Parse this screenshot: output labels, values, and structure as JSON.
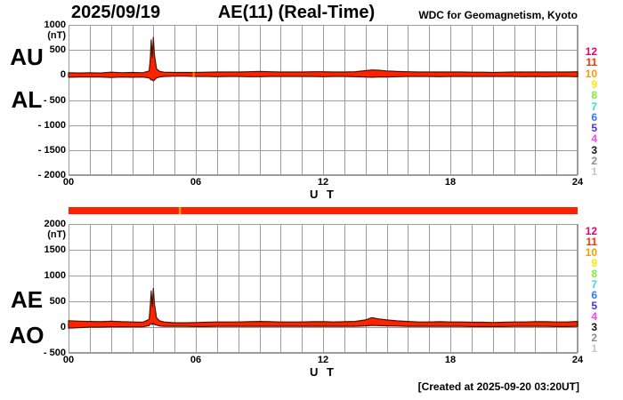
{
  "header": {
    "date": "2025/09/19",
    "title": "AE(11) (Real-Time)",
    "source": "WDC for Geomagnetism, Kyoto"
  },
  "footer": {
    "created": "[Created at 2025-09-20 03:20UT]"
  },
  "colors": {
    "trace": "#ff2200",
    "trace_edge": "#4a1500",
    "grid": "#9c9c9c",
    "text": "#000000"
  },
  "legend": {
    "station_counts": [
      "12",
      "11",
      "10",
      "9",
      "8",
      "7",
      "6",
      "5",
      "4",
      "3",
      "2",
      "1"
    ],
    "colors": [
      "#e8006e",
      "#ff3300",
      "#ff9900",
      "#ffe800",
      "#80ee3c",
      "#30e0d0",
      "#3377ff",
      "#5530cc",
      "#ff40ff",
      "#151515",
      "#8c8c8c",
      "#c8c8c8"
    ]
  },
  "availability_bar": {
    "color": "#ff2200",
    "gap_hour": 5.25,
    "gap_color": "#ff9900"
  },
  "chart_data": [
    {
      "type": "area",
      "left_labels": [
        "AU",
        "AL"
      ],
      "ylabel": "(nT)",
      "xlabel": "U T",
      "ylim": [
        -2000,
        1000
      ],
      "yticks": [
        1000,
        500,
        0,
        -500,
        -1000,
        -1500,
        -2000
      ],
      "ytick_labels": [
        "1000",
        "500",
        "0",
        "- 500",
        "- 1000",
        "- 1500",
        "- 2000"
      ],
      "xlim": [
        0,
        24
      ],
      "xtick_hours": [
        0,
        6,
        12,
        18,
        24
      ],
      "xtick_labels": [
        "00",
        "06",
        "12",
        "18",
        "24"
      ],
      "grid": true,
      "band_gap": {
        "hour": 5.9,
        "top": 50,
        "bottom": -35,
        "color": "#ff9900"
      },
      "x": [
        0,
        0.5,
        1,
        1.5,
        2,
        2.5,
        3,
        3.5,
        3.8,
        3.85,
        3.9,
        3.95,
        4.0,
        4.05,
        4.15,
        4.3,
        4.5,
        5,
        5.5,
        6,
        6.5,
        7,
        7.5,
        8,
        8.5,
        9,
        9.5,
        10,
        10.5,
        11,
        11.5,
        12,
        12.5,
        13,
        13.5,
        14,
        14.3,
        14.6,
        15,
        15.5,
        16,
        16.5,
        17,
        17.5,
        18,
        18.5,
        19,
        19.5,
        20,
        20.5,
        21,
        21.5,
        22,
        22.5,
        23,
        23.5,
        24
      ],
      "series": [
        {
          "name": "AU",
          "values": [
            45,
            40,
            45,
            40,
            55,
            45,
            50,
            45,
            80,
            300,
            700,
            350,
            750,
            400,
            120,
            70,
            55,
            50,
            50,
            50,
            55,
            60,
            60,
            60,
            65,
            70,
            65,
            60,
            60,
            60,
            65,
            65,
            60,
            60,
            65,
            85,
            100,
            95,
            80,
            70,
            65,
            60,
            60,
            60,
            60,
            60,
            55,
            55,
            50,
            55,
            60,
            60,
            60,
            60,
            60,
            60,
            65
          ]
        },
        {
          "name": "AL",
          "values": [
            -45,
            -40,
            -40,
            -40,
            -50,
            -40,
            -45,
            -40,
            -60,
            -80,
            -100,
            -90,
            -120,
            -100,
            -60,
            -40,
            -30,
            -25,
            -25,
            -30,
            -30,
            -35,
            -30,
            -30,
            -35,
            -35,
            -30,
            -30,
            -30,
            -30,
            -30,
            -35,
            -30,
            -30,
            -35,
            -40,
            -45,
            -40,
            -40,
            -35,
            -30,
            -30,
            -30,
            -35,
            -30,
            -30,
            -30,
            -30,
            -30,
            -30,
            -30,
            -35,
            -30,
            -35,
            -30,
            -30,
            -35
          ]
        }
      ]
    },
    {
      "type": "area",
      "left_labels": [
        "AE",
        "AO"
      ],
      "ylabel": "(nT)",
      "xlabel": "U T",
      "ylim": [
        -500,
        2000
      ],
      "yticks": [
        2000,
        1500,
        1000,
        500,
        0,
        -500
      ],
      "ytick_labels": [
        "2000",
        "1500",
        "1000",
        "500",
        "0",
        "- 500"
      ],
      "xlim": [
        0,
        24
      ],
      "xtick_hours": [
        0,
        6,
        12,
        18,
        24
      ],
      "xtick_labels": [
        "00",
        "06",
        "12",
        "18",
        "24"
      ],
      "grid": true,
      "x": [
        0,
        0.5,
        1,
        1.5,
        2,
        2.5,
        3,
        3.5,
        3.8,
        3.85,
        3.9,
        3.95,
        4.0,
        4.05,
        4.15,
        4.3,
        4.5,
        5,
        5.5,
        6,
        6.5,
        7,
        7.5,
        8,
        8.5,
        9,
        9.5,
        10,
        10.5,
        11,
        11.5,
        12,
        12.5,
        13,
        13.5,
        14,
        14.3,
        14.6,
        15,
        15.5,
        16,
        16.5,
        17,
        17.5,
        18,
        18.5,
        19,
        19.5,
        20,
        20.5,
        21,
        21.5,
        22,
        22.5,
        23,
        23.5,
        24
      ],
      "series": [
        {
          "name": "AE",
          "values": [
            125,
            115,
            110,
            105,
            115,
            105,
            100,
            95,
            150,
            400,
            700,
            400,
            750,
            450,
            180,
            120,
            100,
            85,
            85,
            90,
            95,
            100,
            100,
            100,
            105,
            110,
            105,
            100,
            100,
            100,
            105,
            105,
            100,
            105,
            110,
            140,
            185,
            160,
            140,
            120,
            110,
            100,
            100,
            105,
            100,
            100,
            95,
            95,
            90,
            95,
            100,
            100,
            105,
            105,
            100,
            100,
            110
          ]
        },
        {
          "name": "AO",
          "values": [
            -20,
            -10,
            0,
            0,
            5,
            5,
            5,
            5,
            30,
            60,
            60,
            50,
            80,
            50,
            40,
            20,
            15,
            15,
            15,
            10,
            10,
            15,
            15,
            15,
            15,
            15,
            15,
            15,
            15,
            15,
            15,
            15,
            15,
            15,
            15,
            25,
            35,
            30,
            25,
            20,
            15,
            15,
            15,
            15,
            15,
            15,
            10,
            10,
            10,
            10,
            15,
            15,
            15,
            15,
            10,
            10,
            15
          ]
        }
      ]
    }
  ]
}
